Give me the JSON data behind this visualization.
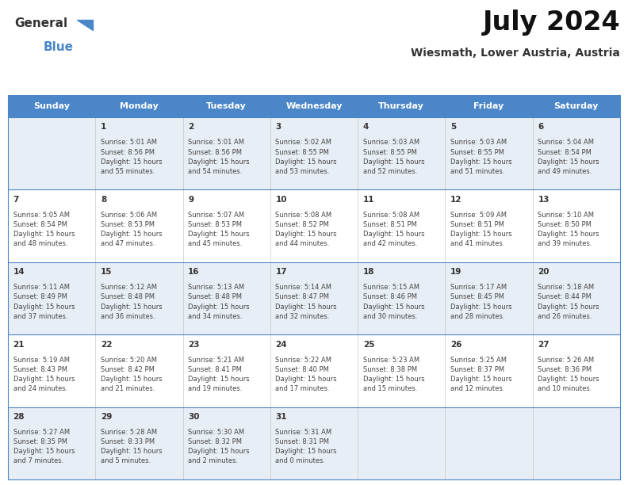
{
  "title": "July 2024",
  "subtitle": "Wiesmath, Lower Austria, Austria",
  "header_bg": "#4a86c8",
  "header_text_color": "#ffffff",
  "days_of_week": [
    "Sunday",
    "Monday",
    "Tuesday",
    "Wednesday",
    "Thursday",
    "Friday",
    "Saturday"
  ],
  "weeks": [
    [
      {
        "day": "",
        "info": ""
      },
      {
        "day": "1",
        "info": "Sunrise: 5:01 AM\nSunset: 8:56 PM\nDaylight: 15 hours\nand 55 minutes."
      },
      {
        "day": "2",
        "info": "Sunrise: 5:01 AM\nSunset: 8:56 PM\nDaylight: 15 hours\nand 54 minutes."
      },
      {
        "day": "3",
        "info": "Sunrise: 5:02 AM\nSunset: 8:55 PM\nDaylight: 15 hours\nand 53 minutes."
      },
      {
        "day": "4",
        "info": "Sunrise: 5:03 AM\nSunset: 8:55 PM\nDaylight: 15 hours\nand 52 minutes."
      },
      {
        "day": "5",
        "info": "Sunrise: 5:03 AM\nSunset: 8:55 PM\nDaylight: 15 hours\nand 51 minutes."
      },
      {
        "day": "6",
        "info": "Sunrise: 5:04 AM\nSunset: 8:54 PM\nDaylight: 15 hours\nand 49 minutes."
      }
    ],
    [
      {
        "day": "7",
        "info": "Sunrise: 5:05 AM\nSunset: 8:54 PM\nDaylight: 15 hours\nand 48 minutes."
      },
      {
        "day": "8",
        "info": "Sunrise: 5:06 AM\nSunset: 8:53 PM\nDaylight: 15 hours\nand 47 minutes."
      },
      {
        "day": "9",
        "info": "Sunrise: 5:07 AM\nSunset: 8:53 PM\nDaylight: 15 hours\nand 45 minutes."
      },
      {
        "day": "10",
        "info": "Sunrise: 5:08 AM\nSunset: 8:52 PM\nDaylight: 15 hours\nand 44 minutes."
      },
      {
        "day": "11",
        "info": "Sunrise: 5:08 AM\nSunset: 8:51 PM\nDaylight: 15 hours\nand 42 minutes."
      },
      {
        "day": "12",
        "info": "Sunrise: 5:09 AM\nSunset: 8:51 PM\nDaylight: 15 hours\nand 41 minutes."
      },
      {
        "day": "13",
        "info": "Sunrise: 5:10 AM\nSunset: 8:50 PM\nDaylight: 15 hours\nand 39 minutes."
      }
    ],
    [
      {
        "day": "14",
        "info": "Sunrise: 5:11 AM\nSunset: 8:49 PM\nDaylight: 15 hours\nand 37 minutes."
      },
      {
        "day": "15",
        "info": "Sunrise: 5:12 AM\nSunset: 8:48 PM\nDaylight: 15 hours\nand 36 minutes."
      },
      {
        "day": "16",
        "info": "Sunrise: 5:13 AM\nSunset: 8:48 PM\nDaylight: 15 hours\nand 34 minutes."
      },
      {
        "day": "17",
        "info": "Sunrise: 5:14 AM\nSunset: 8:47 PM\nDaylight: 15 hours\nand 32 minutes."
      },
      {
        "day": "18",
        "info": "Sunrise: 5:15 AM\nSunset: 8:46 PM\nDaylight: 15 hours\nand 30 minutes."
      },
      {
        "day": "19",
        "info": "Sunrise: 5:17 AM\nSunset: 8:45 PM\nDaylight: 15 hours\nand 28 minutes."
      },
      {
        "day": "20",
        "info": "Sunrise: 5:18 AM\nSunset: 8:44 PM\nDaylight: 15 hours\nand 26 minutes."
      }
    ],
    [
      {
        "day": "21",
        "info": "Sunrise: 5:19 AM\nSunset: 8:43 PM\nDaylight: 15 hours\nand 24 minutes."
      },
      {
        "day": "22",
        "info": "Sunrise: 5:20 AM\nSunset: 8:42 PM\nDaylight: 15 hours\nand 21 minutes."
      },
      {
        "day": "23",
        "info": "Sunrise: 5:21 AM\nSunset: 8:41 PM\nDaylight: 15 hours\nand 19 minutes."
      },
      {
        "day": "24",
        "info": "Sunrise: 5:22 AM\nSunset: 8:40 PM\nDaylight: 15 hours\nand 17 minutes."
      },
      {
        "day": "25",
        "info": "Sunrise: 5:23 AM\nSunset: 8:38 PM\nDaylight: 15 hours\nand 15 minutes."
      },
      {
        "day": "26",
        "info": "Sunrise: 5:25 AM\nSunset: 8:37 PM\nDaylight: 15 hours\nand 12 minutes."
      },
      {
        "day": "27",
        "info": "Sunrise: 5:26 AM\nSunset: 8:36 PM\nDaylight: 15 hours\nand 10 minutes."
      }
    ],
    [
      {
        "day": "28",
        "info": "Sunrise: 5:27 AM\nSunset: 8:35 PM\nDaylight: 15 hours\nand 7 minutes."
      },
      {
        "day": "29",
        "info": "Sunrise: 5:28 AM\nSunset: 8:33 PM\nDaylight: 15 hours\nand 5 minutes."
      },
      {
        "day": "30",
        "info": "Sunrise: 5:30 AM\nSunset: 8:32 PM\nDaylight: 15 hours\nand 2 minutes."
      },
      {
        "day": "31",
        "info": "Sunrise: 5:31 AM\nSunset: 8:31 PM\nDaylight: 15 hours\nand 0 minutes."
      },
      {
        "day": "",
        "info": ""
      },
      {
        "day": "",
        "info": ""
      },
      {
        "day": "",
        "info": ""
      }
    ]
  ],
  "bg_color": "#ffffff",
  "row_bg_odd": "#e8eef5",
  "row_bg_even": "#ffffff",
  "border_color": "#4a86c8",
  "day_num_color": "#333333",
  "info_text_color": "#444444",
  "logo_general_color": "#333333",
  "logo_blue_color": "#4a86c8",
  "fig_width": 7.92,
  "fig_height": 6.12,
  "dpi": 100
}
